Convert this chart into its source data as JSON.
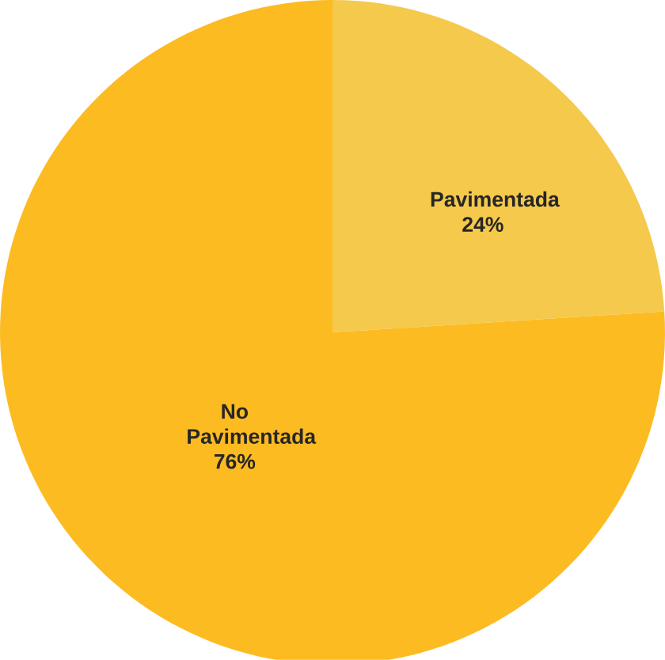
{
  "chart_data": {
    "type": "pie",
    "categories": [
      "Pavimentada",
      "No Pavimentada"
    ],
    "values": [
      24,
      76
    ],
    "colors": [
      "#f5c94c",
      "#fdbb22"
    ],
    "value_labels": [
      "24%",
      "76%"
    ]
  }
}
